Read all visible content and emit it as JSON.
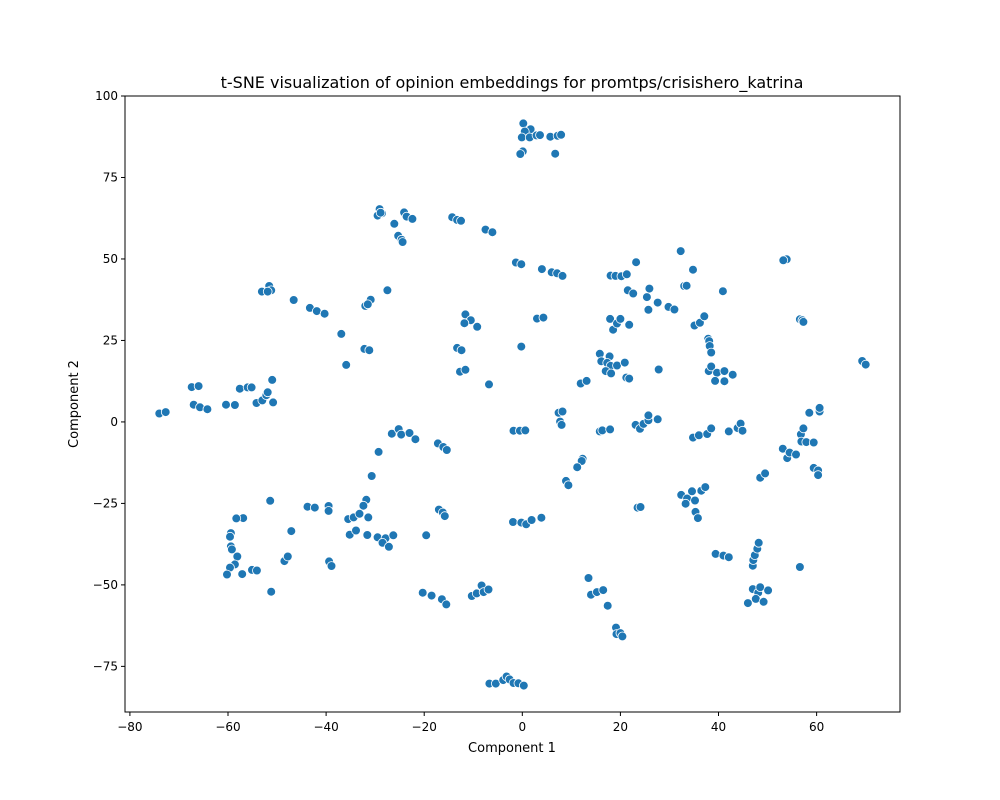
{
  "chart_data": {
    "type": "scatter",
    "title": "t-SNE visualization of opinion embeddings for promtps/crisishero_katrina",
    "xlabel": "Component 1",
    "ylabel": "Component 2",
    "xlim": [
      -81,
      77
    ],
    "ylim": [
      -89,
      100
    ],
    "xticks": [
      -80,
      -60,
      -40,
      -20,
      0,
      20,
      40,
      60
    ],
    "yticks": [
      -75,
      -50,
      -25,
      0,
      25,
      50,
      75,
      100
    ],
    "grid": false,
    "color": "#1f77b4",
    "points": [
      [
        0.2,
        91.6
      ],
      [
        1.7,
        89.8
      ],
      [
        0.5,
        89.1
      ],
      [
        -0.1,
        87.3
      ],
      [
        1.5,
        87.3
      ],
      [
        2.9,
        87.9
      ],
      [
        3.6,
        88.0
      ],
      [
        5.7,
        87.5
      ],
      [
        7.2,
        87.8
      ],
      [
        7.9,
        88.1
      ],
      [
        6.7,
        82.3
      ],
      [
        0.1,
        83.0
      ],
      [
        -0.4,
        82.2
      ],
      [
        -29.1,
        65.3
      ],
      [
        -28.6,
        64.0
      ],
      [
        -29.5,
        63.3
      ],
      [
        -28.9,
        64.2
      ],
      [
        -24.1,
        64.3
      ],
      [
        -23.6,
        63.0
      ],
      [
        -22.4,
        62.3
      ],
      [
        -26.1,
        60.8
      ],
      [
        -25.3,
        57.1
      ],
      [
        -24.6,
        55.9
      ],
      [
        -24.4,
        55.2
      ],
      [
        -14.3,
        62.8
      ],
      [
        -13.3,
        62.0
      ],
      [
        -12.5,
        61.7
      ],
      [
        -7.5,
        59.0
      ],
      [
        -6.1,
        58.2
      ],
      [
        -1.3,
        48.9
      ],
      [
        -0.2,
        48.4
      ],
      [
        4.0,
        46.9
      ],
      [
        6.0,
        45.9
      ],
      [
        7.1,
        45.6
      ],
      [
        8.2,
        44.8
      ],
      [
        23.2,
        49.0
      ],
      [
        18.0,
        44.9
      ],
      [
        19.0,
        44.8
      ],
      [
        20.2,
        44.7
      ],
      [
        21.3,
        45.3
      ],
      [
        21.5,
        40.4
      ],
      [
        25.9,
        40.9
      ],
      [
        25.4,
        38.3
      ],
      [
        22.6,
        39.4
      ],
      [
        27.6,
        36.6
      ],
      [
        25.7,
        34.4
      ],
      [
        29.8,
        35.3
      ],
      [
        31.0,
        34.5
      ],
      [
        32.3,
        52.4
      ],
      [
        33.0,
        41.7
      ],
      [
        33.5,
        41.8
      ],
      [
        34.8,
        46.7
      ],
      [
        40.9,
        40.1
      ],
      [
        53.6,
        49.6
      ],
      [
        53.9,
        49.9
      ],
      [
        53.2,
        49.6
      ],
      [
        35.1,
        29.6
      ],
      [
        36.2,
        30.4
      ],
      [
        37.1,
        32.4
      ],
      [
        37.9,
        25.5
      ],
      [
        38.1,
        24.8
      ],
      [
        38.2,
        23.3
      ],
      [
        38.5,
        21.3
      ],
      [
        -51.6,
        41.7
      ],
      [
        -53.1,
        40.0
      ],
      [
        -51.2,
        40.4
      ],
      [
        -51.9,
        40.0
      ],
      [
        -46.6,
        37.4
      ],
      [
        -43.3,
        35.0
      ],
      [
        -41.9,
        34.0
      ],
      [
        -40.3,
        33.2
      ],
      [
        -36.9,
        27.0
      ],
      [
        -27.5,
        40.4
      ],
      [
        -30.9,
        37.5
      ],
      [
        -32.0,
        35.6
      ],
      [
        -31.5,
        36.1
      ],
      [
        -32.2,
        22.4
      ],
      [
        -31.2,
        22.0
      ],
      [
        -35.9,
        17.5
      ],
      [
        -11.6,
        33.0
      ],
      [
        -10.5,
        31.2
      ],
      [
        -9.2,
        29.2
      ],
      [
        -11.8,
        30.3
      ],
      [
        -13.3,
        22.7
      ],
      [
        -12.4,
        22.0
      ],
      [
        -12.7,
        15.4
      ],
      [
        -11.6,
        16.0
      ],
      [
        -6.8,
        11.5
      ],
      [
        -0.2,
        23.1
      ],
      [
        3.0,
        31.7
      ],
      [
        4.3,
        32.0
      ],
      [
        15.8,
        20.9
      ],
      [
        16.1,
        18.6
      ],
      [
        17.8,
        20.1
      ],
      [
        17.3,
        18.1
      ],
      [
        18.0,
        17.2
      ],
      [
        19.3,
        17.3
      ],
      [
        17.0,
        15.6
      ],
      [
        18.1,
        14.9
      ],
      [
        20.9,
        18.2
      ],
      [
        21.2,
        13.6
      ],
      [
        21.8,
        13.3
      ],
      [
        17.9,
        31.6
      ],
      [
        18.5,
        28.3
      ],
      [
        19.3,
        30.2
      ],
      [
        20.0,
        31.6
      ],
      [
        21.8,
        29.8
      ],
      [
        11.9,
        11.8
      ],
      [
        13.1,
        12.6
      ],
      [
        27.8,
        16.1
      ],
      [
        38.0,
        15.6
      ],
      [
        38.5,
        17.0
      ],
      [
        39.7,
        15.1
      ],
      [
        41.2,
        12.5
      ],
      [
        42.9,
        14.5
      ],
      [
        41.2,
        15.6
      ],
      [
        39.3,
        12.6
      ],
      [
        -74.0,
        2.6
      ],
      [
        -72.7,
        3.0
      ],
      [
        -67.4,
        10.7
      ],
      [
        -66.0,
        11.0
      ],
      [
        -67.0,
        5.3
      ],
      [
        -65.7,
        4.5
      ],
      [
        -64.2,
        3.9
      ],
      [
        -60.4,
        5.3
      ],
      [
        -58.6,
        5.2
      ],
      [
        -57.6,
        10.2
      ],
      [
        -56.0,
        10.6
      ],
      [
        -55.2,
        10.6
      ],
      [
        -54.2,
        5.8
      ],
      [
        -53.0,
        6.6
      ],
      [
        -52.2,
        8.2
      ],
      [
        -51.9,
        9.1
      ],
      [
        -51.0,
        12.9
      ],
      [
        -50.8,
        6.0
      ],
      [
        -26.6,
        -3.6
      ],
      [
        -25.2,
        -2.2
      ],
      [
        -24.7,
        -3.9
      ],
      [
        -23.0,
        -3.4
      ],
      [
        -21.8,
        -5.3
      ],
      [
        -29.3,
        -9.2
      ],
      [
        -17.2,
        -6.6
      ],
      [
        -16.1,
        -7.7
      ],
      [
        -15.4,
        -8.6
      ],
      [
        -30.7,
        -16.6
      ],
      [
        -1.8,
        -2.7
      ],
      [
        -0.5,
        -2.7
      ],
      [
        0.6,
        -2.6
      ],
      [
        7.4,
        2.8
      ],
      [
        8.2,
        3.2
      ],
      [
        7.7,
        0.1
      ],
      [
        8.0,
        -0.9
      ],
      [
        15.8,
        -2.9
      ],
      [
        16.3,
        -2.6
      ],
      [
        17.9,
        -2.3
      ],
      [
        23.1,
        -0.9
      ],
      [
        24.0,
        -2.1
      ],
      [
        24.7,
        -0.6
      ],
      [
        25.7,
        0.5
      ],
      [
        25.7,
        2.0
      ],
      [
        27.6,
        0.8
      ],
      [
        34.8,
        -4.8
      ],
      [
        36.0,
        -4.1
      ],
      [
        37.7,
        -3.7
      ],
      [
        38.5,
        -2.0
      ],
      [
        42.1,
        -2.9
      ],
      [
        43.9,
        -1.9
      ],
      [
        44.5,
        -0.5
      ],
      [
        44.9,
        -2.7
      ],
      [
        53.1,
        -8.2
      ],
      [
        54.0,
        -11.1
      ],
      [
        54.5,
        -9.4
      ],
      [
        55.8,
        -10.0
      ],
      [
        56.8,
        -3.8
      ],
      [
        56.9,
        -6.0
      ],
      [
        57.3,
        -2.0
      ],
      [
        57.9,
        -6.2
      ],
      [
        58.5,
        2.8
      ],
      [
        59.4,
        -6.3
      ],
      [
        59.4,
        -14.1
      ],
      [
        60.3,
        -14.9
      ],
      [
        60.3,
        -16.3
      ],
      [
        60.6,
        3.2
      ],
      [
        60.6,
        4.3
      ],
      [
        69.3,
        18.7
      ],
      [
        70.0,
        17.6
      ],
      [
        56.6,
        31.5
      ],
      [
        57.1,
        31.2
      ],
      [
        57.3,
        30.7
      ],
      [
        48.5,
        -17.1
      ],
      [
        49.5,
        -15.8
      ],
      [
        12.3,
        -11.3
      ],
      [
        12.1,
        -12.0
      ],
      [
        11.2,
        -13.9
      ],
      [
        8.9,
        -18.1
      ],
      [
        9.4,
        -19.4
      ],
      [
        -51.4,
        -24.2
      ],
      [
        -56.9,
        -29.5
      ],
      [
        -58.3,
        -29.6
      ],
      [
        -59.4,
        -34.1
      ],
      [
        -59.6,
        -35.2
      ],
      [
        -59.4,
        -38.2
      ],
      [
        -59.2,
        -39.1
      ],
      [
        -58.1,
        -41.3
      ],
      [
        -58.6,
        -43.7
      ],
      [
        -59.6,
        -44.7
      ],
      [
        -60.2,
        -46.8
      ],
      [
        -57.1,
        -46.7
      ],
      [
        -55.1,
        -45.4
      ],
      [
        -54.1,
        -45.6
      ],
      [
        -51.2,
        -52.1
      ],
      [
        -48.5,
        -42.7
      ],
      [
        -47.8,
        -41.3
      ],
      [
        -47.1,
        -33.5
      ],
      [
        -43.8,
        -26.0
      ],
      [
        -42.3,
        -26.3
      ],
      [
        -39.5,
        -25.8
      ],
      [
        -39.5,
        -27.3
      ],
      [
        -39.4,
        -42.8
      ],
      [
        -38.9,
        -44.2
      ],
      [
        -35.5,
        -29.8
      ],
      [
        -34.4,
        -29.3
      ],
      [
        -33.2,
        -28.2
      ],
      [
        -31.8,
        -23.9
      ],
      [
        -32.4,
        -25.7
      ],
      [
        -31.4,
        -29.3
      ],
      [
        -35.2,
        -34.6
      ],
      [
        -33.9,
        -33.3
      ],
      [
        -31.6,
        -34.7
      ],
      [
        -29.5,
        -35.4
      ],
      [
        -27.9,
        -35.7
      ],
      [
        -28.5,
        -37.1
      ],
      [
        -27.2,
        -38.3
      ],
      [
        -26.3,
        -34.8
      ],
      [
        -19.6,
        -34.8
      ],
      [
        -17.0,
        -26.9
      ],
      [
        -16.2,
        -27.8
      ],
      [
        -15.8,
        -28.9
      ],
      [
        -20.3,
        -52.4
      ],
      [
        -18.5,
        -53.3
      ],
      [
        -16.4,
        -54.4
      ],
      [
        -15.5,
        -56.0
      ],
      [
        -10.3,
        -53.4
      ],
      [
        -9.3,
        -52.6
      ],
      [
        -8.3,
        -50.2
      ],
      [
        -7.9,
        -52.2
      ],
      [
        -6.9,
        -51.4
      ],
      [
        -1.9,
        -30.7
      ],
      [
        -0.2,
        -30.9
      ],
      [
        0.8,
        -31.4
      ],
      [
        1.9,
        -30.1
      ],
      [
        3.9,
        -29.4
      ],
      [
        32.4,
        -22.4
      ],
      [
        33.6,
        -23.5
      ],
      [
        33.3,
        -25.1
      ],
      [
        34.6,
        -21.3
      ],
      [
        35.2,
        -24.1
      ],
      [
        35.3,
        -27.6
      ],
      [
        35.8,
        -29.5
      ],
      [
        36.5,
        -21.1
      ],
      [
        37.3,
        -20.0
      ],
      [
        23.5,
        -26.3
      ],
      [
        24.1,
        -26.1
      ],
      [
        13.5,
        -47.9
      ],
      [
        14.0,
        -53.0
      ],
      [
        15.2,
        -52.2
      ],
      [
        16.5,
        -51.6
      ],
      [
        17.4,
        -56.4
      ],
      [
        19.1,
        -63.1
      ],
      [
        19.2,
        -65.1
      ],
      [
        20.0,
        -64.8
      ],
      [
        20.4,
        -65.8
      ],
      [
        39.4,
        -40.5
      ],
      [
        41.0,
        -41.0
      ],
      [
        42.1,
        -41.5
      ],
      [
        46.0,
        -55.6
      ],
      [
        47.0,
        -51.3
      ],
      [
        48.1,
        -52.4
      ],
      [
        48.5,
        -50.7
      ],
      [
        47.6,
        -54.3
      ],
      [
        49.2,
        -55.2
      ],
      [
        50.1,
        -51.7
      ],
      [
        47.0,
        -44.1
      ],
      [
        47.1,
        -42.4
      ],
      [
        47.4,
        -40.9
      ],
      [
        47.9,
        -38.9
      ],
      [
        48.2,
        -37.1
      ],
      [
        56.6,
        -44.5
      ],
      [
        -6.7,
        -80.3
      ],
      [
        -5.4,
        -80.3
      ],
      [
        -3.9,
        -79.2
      ],
      [
        -3.2,
        -78.1
      ],
      [
        -2.6,
        -79.0
      ],
      [
        -1.8,
        -80.1
      ],
      [
        -0.8,
        -80.2
      ],
      [
        0.3,
        -80.9
      ]
    ]
  }
}
